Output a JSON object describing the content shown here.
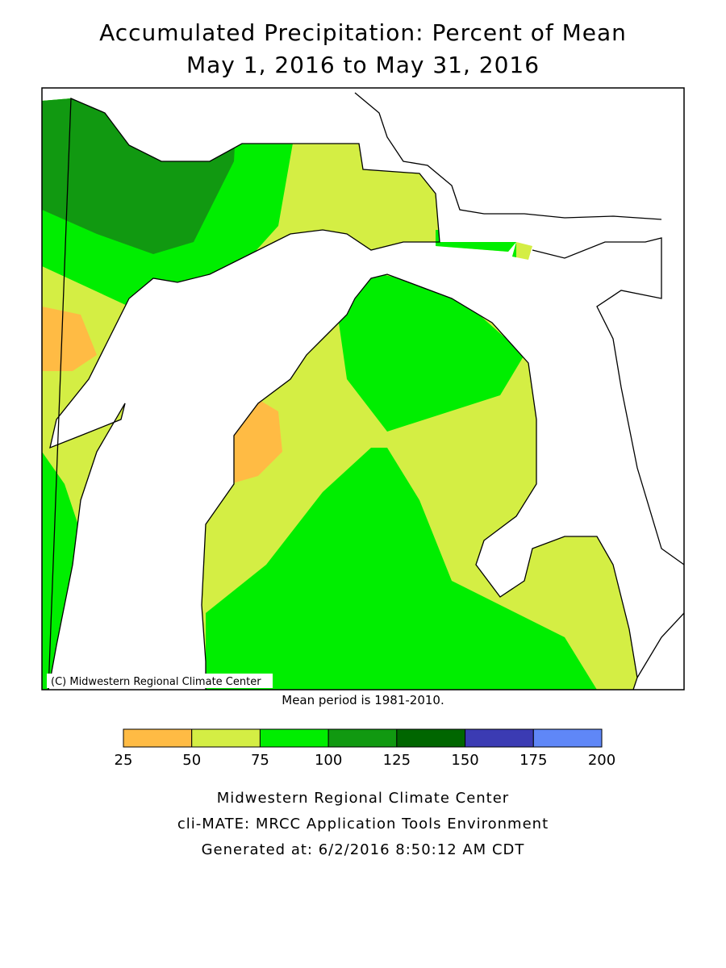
{
  "header": {
    "title": "Accumulated Precipitation: Percent of Mean",
    "subtitle": "May 1, 2016 to May 31, 2016"
  },
  "map": {
    "credit": "(C) Midwestern Regional Climate Center",
    "note": "Mean period is 1981-2010."
  },
  "legend": {
    "bins": [
      25,
      50,
      75,
      100,
      125,
      150,
      175,
      200
    ],
    "colors": [
      "#ffbb44",
      "#d4ee44",
      "#00ee00",
      "#119911",
      "#006600",
      "#3b3bb3",
      "#5f87f7"
    ]
  },
  "footer": {
    "lines": [
      "Midwestern Regional Climate Center",
      "cli-MATE: MRCC Application Tools Environment",
      "Generated at: 6/2/2016 8:50:12 AM CDT"
    ]
  }
}
